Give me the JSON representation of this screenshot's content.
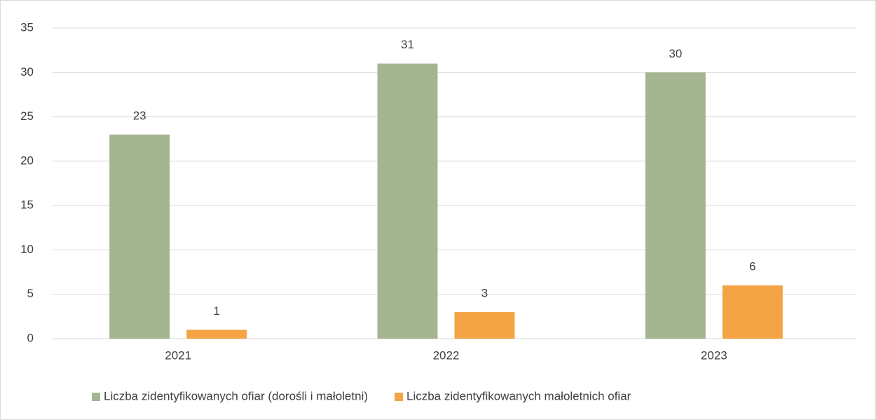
{
  "chart_data": {
    "type": "bar",
    "categories": [
      "2021",
      "2022",
      "2023"
    ],
    "series": [
      {
        "name": "Liczba zidentyfikowanych ofiar (dorośli i małoletni)",
        "color": "#a5b592",
        "values": [
          23,
          31,
          30
        ]
      },
      {
        "name": "Liczba zidentyfikowanych małoletnich ofiar",
        "color": "#f4a444",
        "values": [
          1,
          3,
          6
        ]
      }
    ],
    "ylim": [
      0,
      35
    ],
    "yticks": [
      0,
      5,
      10,
      15,
      20,
      25,
      30,
      35
    ],
    "grid": true,
    "legend": "bottom"
  }
}
